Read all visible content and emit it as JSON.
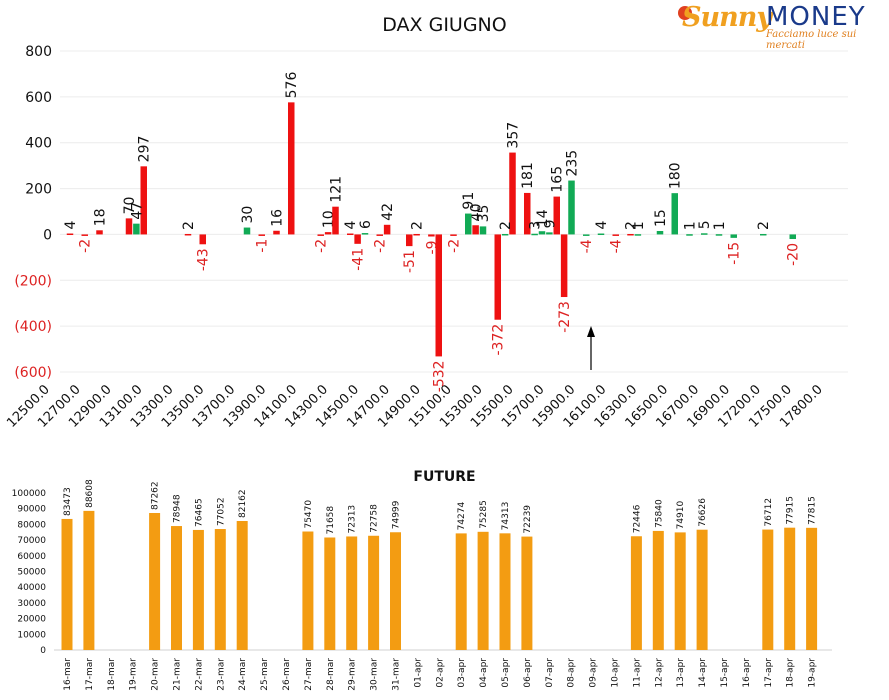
{
  "logo": {
    "brand_1": "unny",
    "brand_2": "MONEY",
    "tagline": "Facciamo luce sui mercati"
  },
  "chart_data": [
    {
      "type": "bar",
      "title": "DAX GIUGNO",
      "ylim": [
        -600,
        800
      ],
      "yticks": [
        {
          "value": 800,
          "label": "800"
        },
        {
          "value": 600,
          "label": "600"
        },
        {
          "value": 400,
          "label": "400"
        },
        {
          "value": 200,
          "label": "200"
        },
        {
          "value": 0,
          "label": "0"
        },
        {
          "value": -200,
          "label": "(200)"
        },
        {
          "value": -400,
          "label": "(400)"
        },
        {
          "value": -600,
          "label": "(600)"
        }
      ],
      "categories": [
        "12500.0",
        "12700.0",
        "12900.0",
        "13100.0",
        "13300.0",
        "13500.0",
        "13700.0",
        "13900.0",
        "14100.0",
        "14300.0",
        "14500.0",
        "14700.0",
        "14900.0",
        "15100.0",
        "15300.0",
        "15500.0",
        "15700.0",
        "15900.0",
        "16100.0",
        "16300.0",
        "16500.0",
        "16700.0",
        "16900.0",
        "17200.0",
        "17500.0",
        "17800.0"
      ],
      "colors": {
        "red": "#ee1111",
        "green": "#11aa55",
        "neg_label": "#dd2222"
      },
      "series": [
        {
          "color": "red",
          "points": [
            {
              "strike": 12500,
              "value": 4
            },
            {
              "strike": 12600,
              "value": -2
            },
            {
              "strike": 12700,
              "value": 18
            },
            {
              "strike": 12900,
              "value": 70
            },
            {
              "strike": 13000,
              "value": 297
            },
            {
              "strike": 13300,
              "value": 2
            },
            {
              "strike": 13400,
              "value": -43
            },
            {
              "strike": 13800,
              "value": -1
            },
            {
              "strike": 13900,
              "value": 16
            },
            {
              "strike": 14000,
              "value": 576
            },
            {
              "strike": 14200,
              "value": -2
            },
            {
              "strike": 14250,
              "value": 10
            },
            {
              "strike": 14300,
              "value": 121
            },
            {
              "strike": 14400,
              "value": 4
            },
            {
              "strike": 14450,
              "value": -41
            },
            {
              "strike": 14600,
              "value": -2
            },
            {
              "strike": 14650,
              "value": 42
            },
            {
              "strike": 14800,
              "value": -51
            },
            {
              "strike": 14850,
              "value": 2
            },
            {
              "strike": 14950,
              "value": -9
            },
            {
              "strike": 15000,
              "value": -532
            },
            {
              "strike": 15100,
              "value": -2
            },
            {
              "strike": 15250,
              "value": 40
            },
            {
              "strike": 15400,
              "value": -372
            },
            {
              "strike": 15500,
              "value": 357
            },
            {
              "strike": 15600,
              "value": 181
            },
            {
              "strike": 15800,
              "value": 165
            },
            {
              "strike": 15850,
              "value": -273
            },
            {
              "strike": 16200,
              "value": -4
            },
            {
              "strike": 16300,
              "value": 2
            }
          ]
        },
        {
          "color": "green",
          "points": [
            {
              "strike": 12950,
              "value": 47
            },
            {
              "strike": 13700,
              "value": 30
            },
            {
              "strike": 14500,
              "value": 6
            },
            {
              "strike": 15200,
              "value": 91
            },
            {
              "strike": 15300,
              "value": 35
            },
            {
              "strike": 15450,
              "value": 2
            },
            {
              "strike": 15650,
              "value": 3
            },
            {
              "strike": 15700,
              "value": 14
            },
            {
              "strike": 15750,
              "value": 9
            },
            {
              "strike": 15900,
              "value": 235
            },
            {
              "strike": 16000,
              "value": -4
            },
            {
              "strike": 16100,
              "value": 4
            },
            {
              "strike": 16350,
              "value": 1
            },
            {
              "strike": 16500,
              "value": 15
            },
            {
              "strike": 16600,
              "value": 180
            },
            {
              "strike": 16700,
              "value": 1
            },
            {
              "strike": 16800,
              "value": 5
            },
            {
              "strike": 16900,
              "value": 1
            },
            {
              "strike": 17000,
              "value": -15
            },
            {
              "strike": 17200,
              "value": 2
            },
            {
              "strike": 17400,
              "value": -20
            }
          ]
        }
      ]
    },
    {
      "type": "bar",
      "title": "FUTURE",
      "ylim": [
        0,
        100000
      ],
      "yticks": [
        "0",
        "10000",
        "20000",
        "30000",
        "40000",
        "50000",
        "60000",
        "70000",
        "80000",
        "90000",
        "100000"
      ],
      "color": "#f39c12",
      "categories": [
        "16-mar",
        "17-mar",
        "18-mar",
        "19-mar",
        "20-mar",
        "21-mar",
        "22-mar",
        "23-mar",
        "24-mar",
        "25-mar",
        "26-mar",
        "27-mar",
        "28-mar",
        "29-mar",
        "30-mar",
        "31-mar",
        "01-apr",
        "02-apr",
        "03-apr",
        "04-apr",
        "05-apr",
        "06-apr",
        "07-apr",
        "08-apr",
        "09-apr",
        "10-apr",
        "11-apr",
        "12-apr",
        "13-apr",
        "14-apr",
        "15-apr",
        "16-apr",
        "17-apr",
        "18-apr",
        "19-apr"
      ],
      "values": [
        83473,
        88608,
        null,
        null,
        87262,
        78948,
        76465,
        77052,
        82162,
        null,
        null,
        75470,
        71658,
        72313,
        72758,
        74999,
        null,
        null,
        74274,
        75285,
        74313,
        72239,
        null,
        null,
        null,
        null,
        72446,
        75840,
        74910,
        76626,
        null,
        null,
        76712,
        77915,
        77815
      ]
    }
  ]
}
